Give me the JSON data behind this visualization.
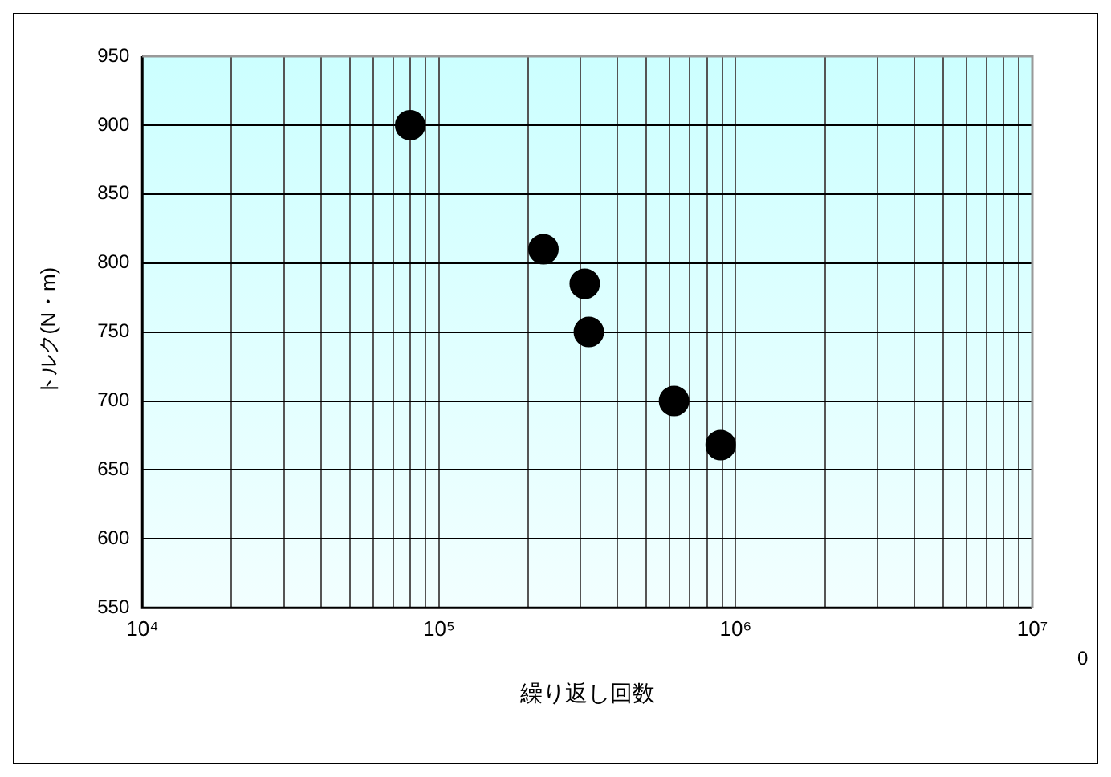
{
  "chart_data": {
    "type": "scatter",
    "xlabel": "繰り返し回数",
    "ylabel": "トルク(N・m)",
    "x": [
      80000,
      225000,
      310000,
      320000,
      620000,
      890000
    ],
    "series": [
      {
        "color": "#000000",
        "values": [
          900,
          810,
          785,
          750,
          700,
          668
        ]
      }
    ],
    "log": "x",
    "marker": "circle",
    "grid": true,
    "legend": false,
    "xlim": [
      10000,
      10000000
    ],
    "xticks": [
      {
        "value": 10000,
        "label": "10⁴"
      },
      {
        "value": 20000,
        "label": null
      },
      {
        "value": 30000,
        "label": null
      },
      {
        "value": 40000,
        "label": null
      },
      {
        "value": 50000,
        "label": null
      },
      {
        "value": 60000,
        "label": null
      },
      {
        "value": 70000,
        "label": null
      },
      {
        "value": 80000,
        "label": null
      },
      {
        "value": 90000,
        "label": null
      },
      {
        "value": 100000,
        "label": "10⁵"
      },
      {
        "value": 200000,
        "label": null
      },
      {
        "value": 300000,
        "label": null
      },
      {
        "value": 400000,
        "label": null
      },
      {
        "value": 500000,
        "label": null
      },
      {
        "value": 600000,
        "label": null
      },
      {
        "value": 700000,
        "label": null
      },
      {
        "value": 800000,
        "label": null
      },
      {
        "value": 900000,
        "label": null
      },
      {
        "value": 1000000,
        "label": "10⁶"
      },
      {
        "value": 2000000,
        "label": null
      },
      {
        "value": 3000000,
        "label": null
      },
      {
        "value": 4000000,
        "label": null
      },
      {
        "value": 5000000,
        "label": null
      },
      {
        "value": 6000000,
        "label": null
      },
      {
        "value": 7000000,
        "label": null
      },
      {
        "value": 8000000,
        "label": null
      },
      {
        "value": 9000000,
        "label": null
      },
      {
        "value": 10000000,
        "label": "10⁷"
      }
    ],
    "ylim": [
      550,
      950
    ],
    "yticks": [
      550,
      600,
      650,
      700,
      750,
      800,
      850,
      900,
      950
    ],
    "annotations": [
      "0"
    ]
  }
}
